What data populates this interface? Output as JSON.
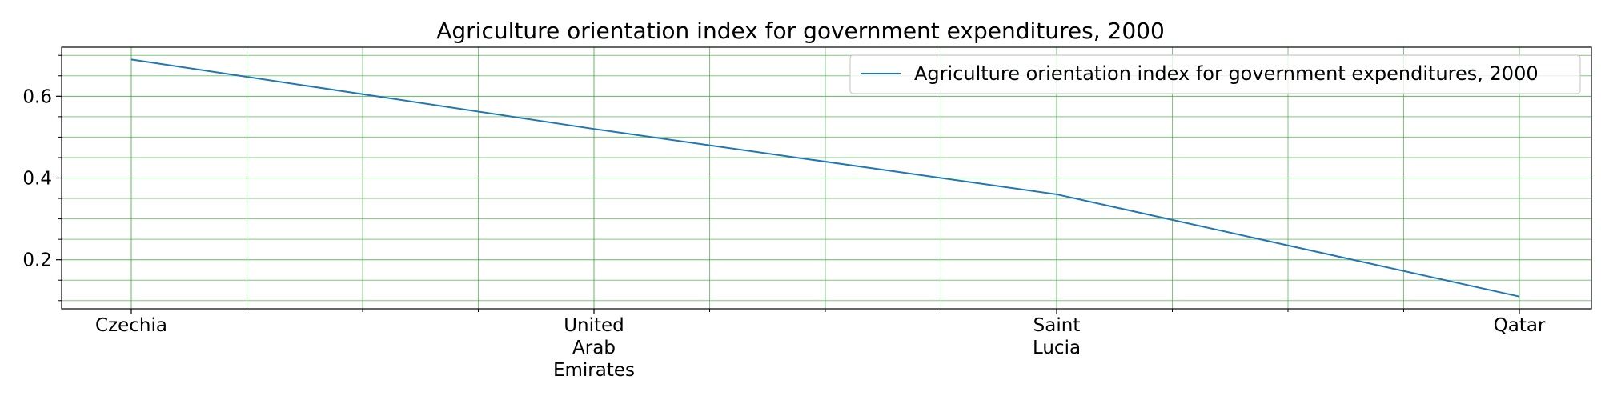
{
  "chart_data": {
    "type": "line",
    "title": "Agriculture orientation index for government expenditures, 2000",
    "xlabel": "",
    "ylabel": "",
    "categories": [
      "Czechia",
      "United Arab Emirates",
      "Saint Lucia",
      "Qatar"
    ],
    "category_label_lines": [
      [
        "Czechia"
      ],
      [
        "United",
        "Arab",
        "Emirates"
      ],
      [
        "Saint",
        "Lucia"
      ],
      [
        "Qatar"
      ]
    ],
    "series": [
      {
        "name": "Agriculture orientation index for government expenditures, 2000",
        "values": [
          0.69,
          0.52,
          0.36,
          0.11
        ],
        "color": "#1f77b4"
      }
    ],
    "ylim": [
      0.08,
      0.72
    ],
    "y_major_ticks": [
      0.2,
      0.4,
      0.6
    ],
    "y_major_tick_labels": [
      "0.2",
      "0.4",
      "0.6"
    ],
    "y_minor_ticks": [
      0.1,
      0.15,
      0.25,
      0.3,
      0.35,
      0.45,
      0.5,
      0.55,
      0.65,
      0.7
    ],
    "x_minor_per_interval": 4,
    "grid": true,
    "grid_color": "#2ca02c",
    "legend_position": "top-right"
  }
}
